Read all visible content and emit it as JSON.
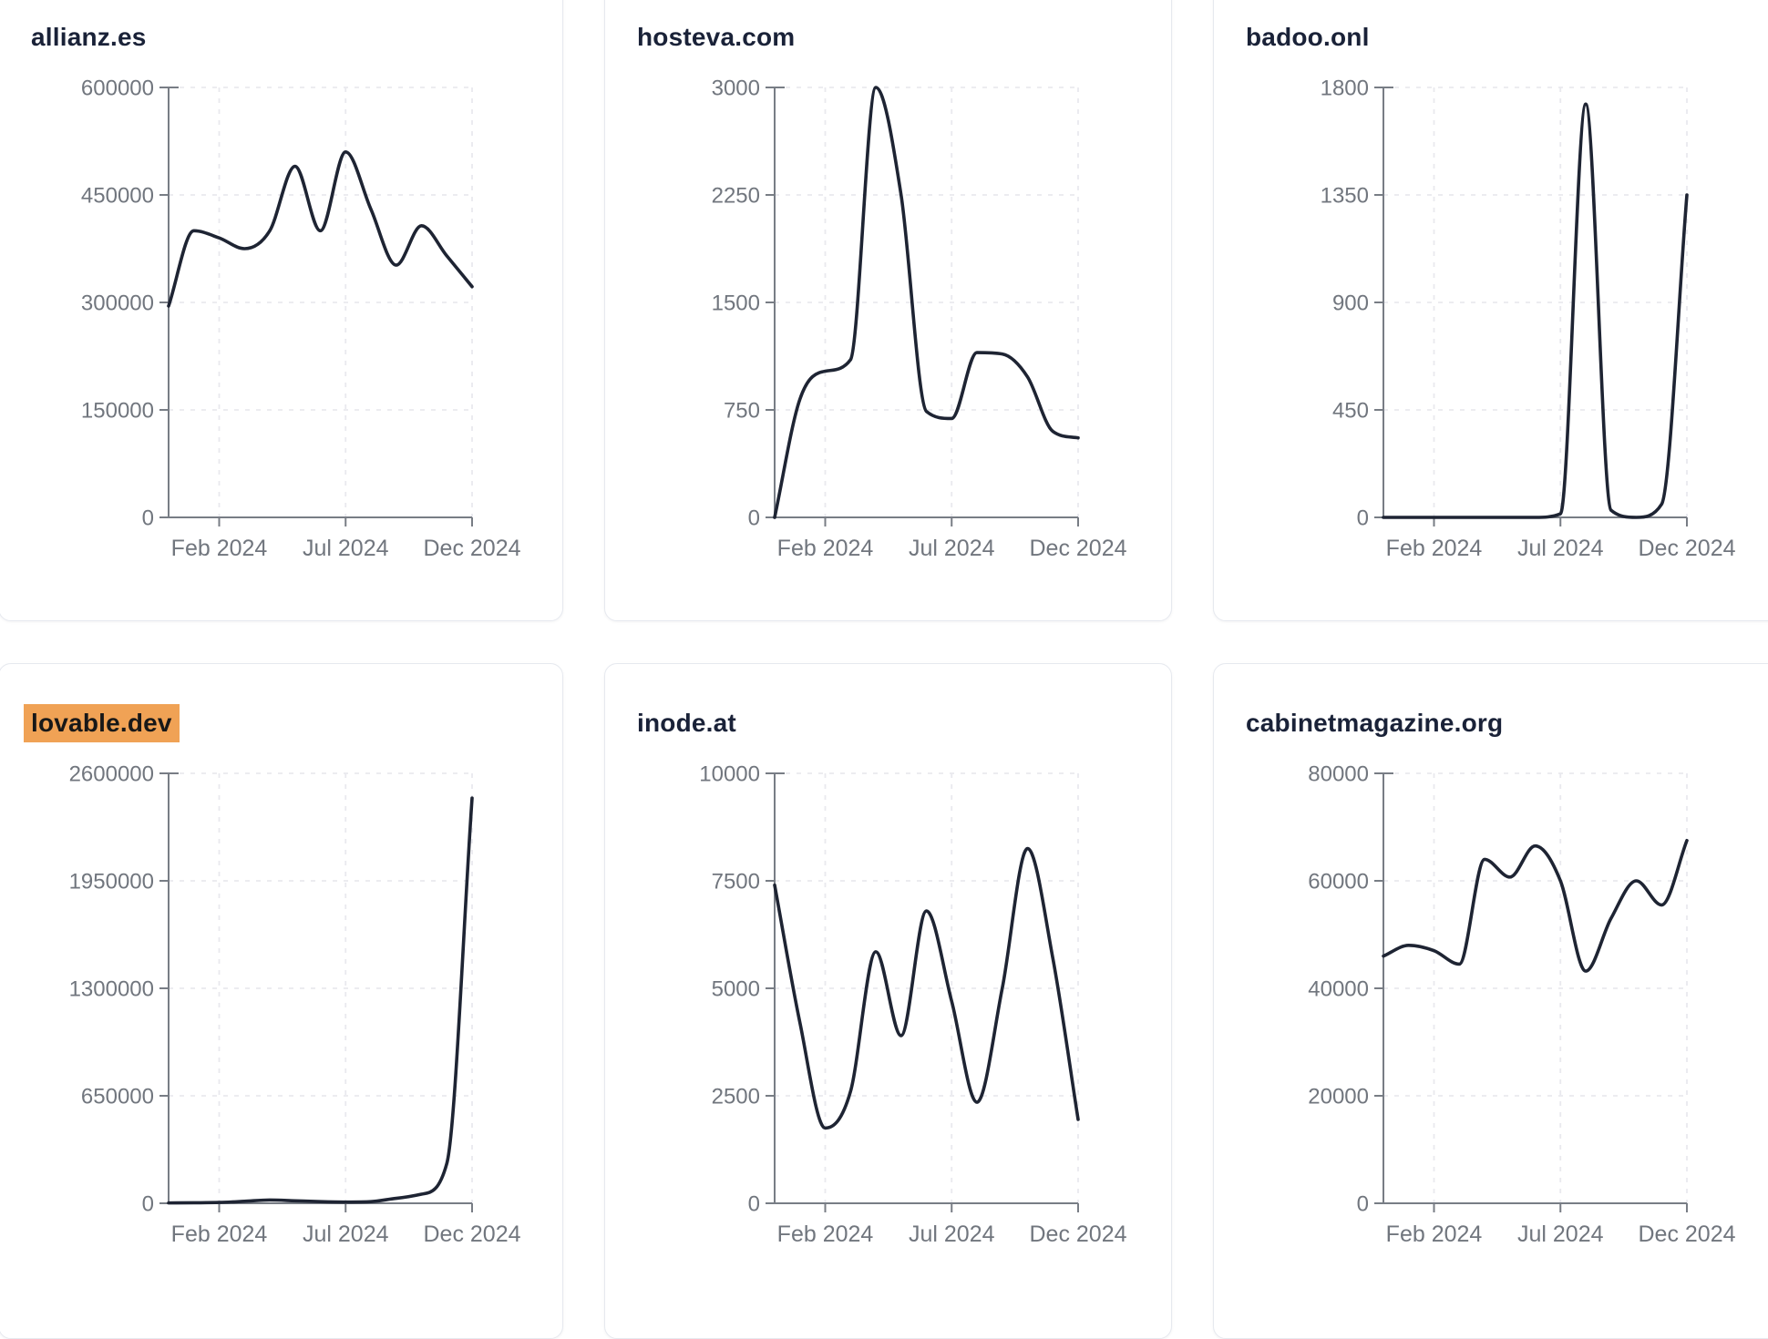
{
  "colors": {
    "line": "#1e2433",
    "title_text": "#1a2238",
    "axis": "#787d85",
    "tick_text": "#71767e",
    "gridline": "#e9e9ee",
    "card_border": "#e6e9ef",
    "highlight_background": "#f0a255",
    "highlight_text": "#181818",
    "page_background": "#ffffff"
  },
  "chart_data": [
    {
      "type": "line",
      "title": "allianz.es",
      "highlighted": false,
      "ylim": [
        0,
        600000
      ],
      "y_ticks": [
        0,
        150000,
        300000,
        450000,
        600000
      ],
      "x_ticks": [
        {
          "month_index": 2,
          "label": "Feb 2024"
        },
        {
          "month_index": 7,
          "label": "Jul 2024"
        },
        {
          "month_index": 12,
          "label": "Dec 2024"
        }
      ],
      "x_range_months": [
        0,
        12
      ],
      "values": [
        295000,
        400000,
        390000,
        375000,
        400000,
        490000,
        400000,
        510000,
        430000,
        352000,
        407000,
        365000,
        322000
      ],
      "grid": true,
      "legend": "none"
    },
    {
      "type": "line",
      "title": "hosteva.com",
      "highlighted": false,
      "ylim": [
        0,
        3000
      ],
      "y_ticks": [
        0,
        750,
        1500,
        2250,
        3000
      ],
      "x_ticks": [
        {
          "month_index": 2,
          "label": "Feb 2024"
        },
        {
          "month_index": 7,
          "label": "Jul 2024"
        },
        {
          "month_index": 12,
          "label": "Dec 2024"
        }
      ],
      "x_range_months": [
        0,
        12
      ],
      "values": [
        0,
        825,
        1020,
        1100,
        3000,
        2250,
        740,
        690,
        1150,
        1140,
        980,
        600,
        555
      ],
      "grid": true,
      "legend": "none"
    },
    {
      "type": "line",
      "title": "badoo.onl",
      "highlighted": false,
      "ylim": [
        0,
        1800
      ],
      "y_ticks": [
        0,
        450,
        900,
        1350,
        1800
      ],
      "x_ticks": [
        {
          "month_index": 2,
          "label": "Feb 2024"
        },
        {
          "month_index": 7,
          "label": "Jul 2024"
        },
        {
          "month_index": 12,
          "label": "Dec 2024"
        }
      ],
      "x_range_months": [
        0,
        12
      ],
      "values": [
        0,
        0,
        0,
        0,
        0,
        0,
        0,
        15,
        1730,
        30,
        0,
        55,
        1350
      ],
      "grid": true,
      "legend": "none"
    },
    {
      "type": "line",
      "title": "lovable.dev",
      "highlighted": true,
      "ylim": [
        0,
        2600000
      ],
      "y_ticks": [
        0,
        650000,
        1300000,
        1950000,
        2600000
      ],
      "x_ticks": [
        {
          "month_index": 2,
          "label": "Feb 2024"
        },
        {
          "month_index": 7,
          "label": "Jul 2024"
        },
        {
          "month_index": 12,
          "label": "Dec 2024"
        }
      ],
      "x_range_months": [
        0,
        12
      ],
      "values": [
        2000,
        3000,
        5000,
        12000,
        20000,
        15000,
        10000,
        7500,
        10000,
        30000,
        55000,
        240000,
        2450000
      ],
      "grid": true,
      "legend": "none"
    },
    {
      "type": "line",
      "title": "inode.at",
      "highlighted": false,
      "ylim": [
        0,
        10000
      ],
      "y_ticks": [
        0,
        2500,
        5000,
        7500,
        10000
      ],
      "x_ticks": [
        {
          "month_index": 2,
          "label": "Feb 2024"
        },
        {
          "month_index": 7,
          "label": "Jul 2024"
        },
        {
          "month_index": 12,
          "label": "Dec 2024"
        }
      ],
      "x_range_months": [
        0,
        12
      ],
      "values": [
        7400,
        4200,
        1750,
        2600,
        5850,
        3900,
        6800,
        4700,
        2350,
        5000,
        8250,
        5700,
        1950
      ],
      "grid": true,
      "legend": "none"
    },
    {
      "type": "line",
      "title": "cabinetmagazine.org",
      "highlighted": false,
      "ylim": [
        0,
        80000
      ],
      "y_ticks": [
        0,
        20000,
        40000,
        60000,
        80000
      ],
      "x_ticks": [
        {
          "month_index": 2,
          "label": "Feb 2024"
        },
        {
          "month_index": 7,
          "label": "Jul 2024"
        },
        {
          "month_index": 12,
          "label": "Dec 2024"
        }
      ],
      "x_range_months": [
        0,
        12
      ],
      "values": [
        46000,
        48000,
        47000,
        44500,
        64000,
        60700,
        66500,
        60000,
        43200,
        53000,
        60000,
        55500,
        67500
      ],
      "grid": true,
      "legend": "none"
    }
  ]
}
